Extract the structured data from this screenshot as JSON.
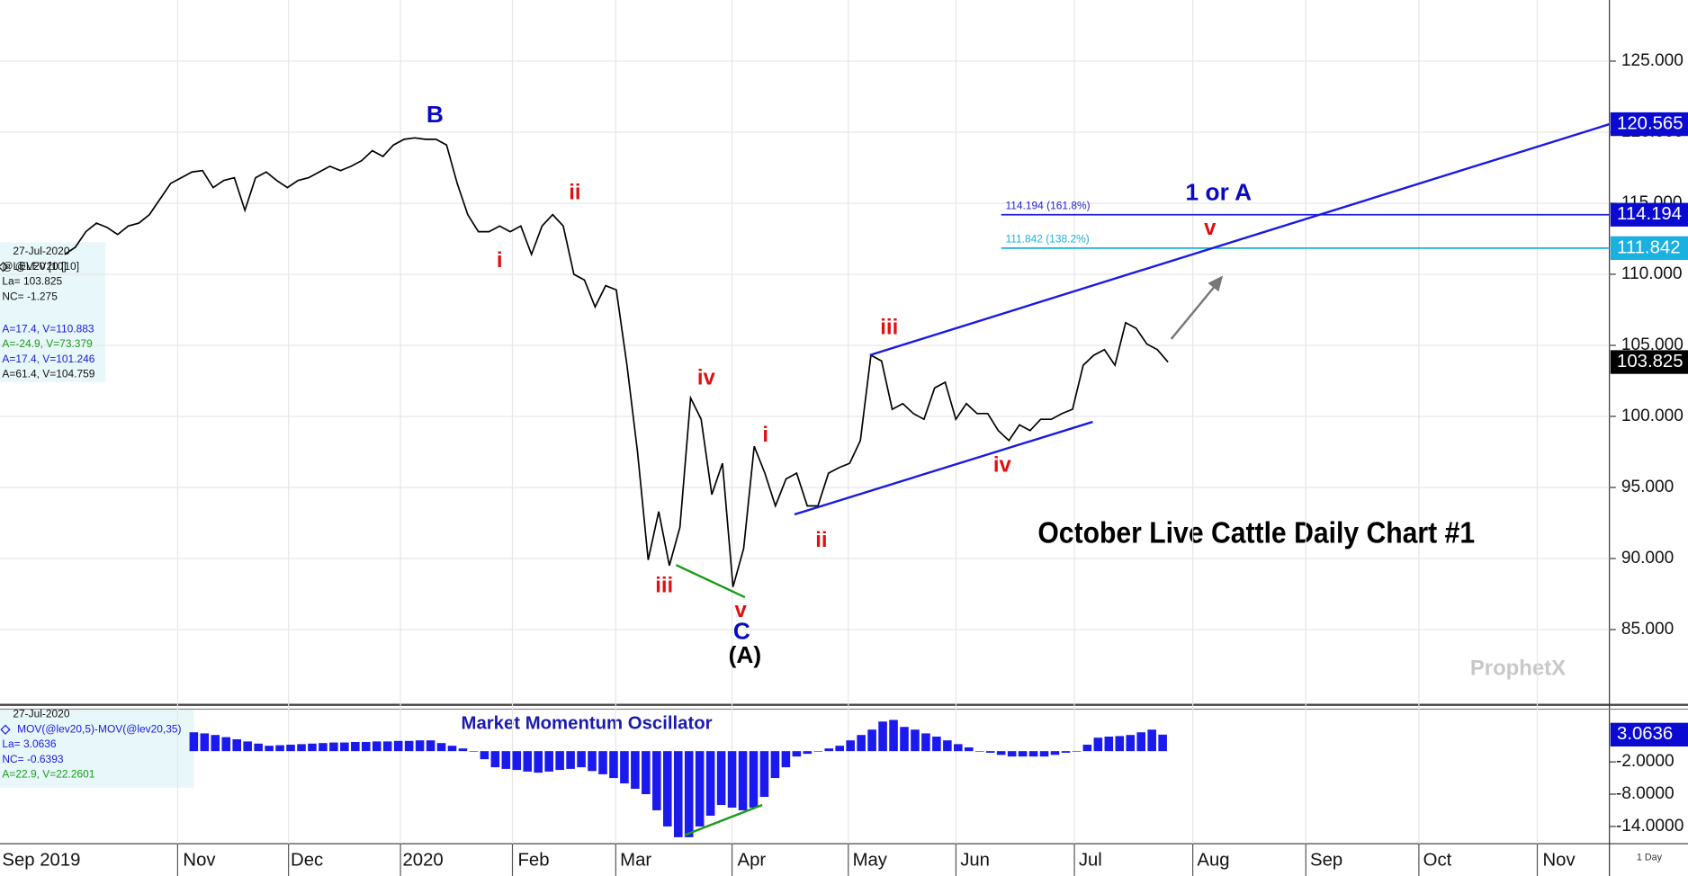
{
  "chart_data": [
    {
      "type": "line",
      "title": "October Live Cattle Daily Chart #1",
      "series": [
        {
          "name": "@LEV20",
          "color": "#000000",
          "values": [
            111.4,
            111.9,
            113.0,
            113.6,
            113.3,
            112.8,
            113.4,
            113.6,
            114.2,
            115.3,
            116.4,
            116.8,
            117.2,
            117.3,
            116.1,
            116.6,
            116.8,
            114.5,
            116.8,
            117.2,
            116.6,
            116.1,
            116.6,
            116.8,
            117.2,
            117.6,
            117.3,
            117.6,
            118.0,
            118.7,
            118.3,
            119.1,
            119.5,
            119.6,
            119.5,
            119.5,
            119.1,
            116.4,
            114.2,
            113.0,
            113.0,
            113.4,
            113.0,
            113.4,
            111.4,
            113.4,
            114.2,
            113.4,
            110.0,
            109.6,
            107.7,
            109.2,
            108.9,
            103.6,
            97.5,
            89.9,
            93.3,
            89.5,
            92.2,
            101.3,
            99.8,
            94.5,
            96.7,
            88.0,
            90.7,
            97.9,
            96.0,
            93.7,
            95.6,
            96.0,
            93.7,
            93.7,
            96.0,
            96.4,
            96.7,
            98.3,
            104.3,
            103.9,
            100.5,
            100.9,
            100.2,
            99.8,
            102.0,
            102.4,
            99.8,
            100.9,
            100.2,
            100.2,
            99.0,
            98.3,
            99.4,
            99.0,
            99.8,
            99.8,
            100.2,
            100.5,
            103.6,
            104.3,
            104.7,
            103.6,
            106.6,
            106.2,
            105.1,
            104.7,
            103.825
          ]
        }
      ],
      "ylim": [
        79.7,
        129.3
      ],
      "yticks": [
        {
          "value": 85,
          "label": "85.000"
        },
        {
          "value": 90,
          "label": "90.000"
        },
        {
          "value": 95,
          "label": "95.000"
        },
        {
          "value": 100,
          "label": "100.000"
        },
        {
          "value": 105,
          "label": "105.000"
        },
        {
          "value": 110,
          "label": "110.000"
        },
        {
          "value": 115,
          "label": "115.000"
        },
        {
          "value": 120,
          "label": "120.000"
        },
        {
          "value": 125,
          "label": "125.000"
        }
      ],
      "grid": true,
      "fib_levels": [
        {
          "value": 114.194,
          "label": "114.194 (161.8%)",
          "color": "#2323d8"
        },
        {
          "value": 111.842,
          "label": "111.842 (138.2%)",
          "color": "#1ab0e0"
        }
      ],
      "price_markers": [
        {
          "value": 120.565,
          "color": "#0a0ad0"
        },
        {
          "value": 114.194,
          "color": "#0a0ad0"
        },
        {
          "value": 111.842,
          "color": "#1ab0e0"
        },
        {
          "value": 103.825,
          "color": "#000000"
        }
      ],
      "annotations": [
        {
          "text": "B",
          "color": "#0a0ac0"
        },
        {
          "text": "i",
          "color": "#e01010"
        },
        {
          "text": "ii",
          "color": "#e01010"
        },
        {
          "text": "iii",
          "color": "#e01010"
        },
        {
          "text": "iv",
          "color": "#e01010"
        },
        {
          "text": "v",
          "color": "#e01010"
        },
        {
          "text": "C",
          "color": "#0a0ac0"
        },
        {
          "text": "(A)",
          "color": "#000000"
        },
        {
          "text": "i",
          "color": "#e01010"
        },
        {
          "text": "ii",
          "color": "#e01010"
        },
        {
          "text": "iii",
          "color": "#e01010"
        },
        {
          "text": "iv",
          "color": "#e01010"
        },
        {
          "text": "v",
          "color": "#e01010"
        },
        {
          "text": "1 or A",
          "color": "#0a0ac0"
        }
      ],
      "info": [
        "27-Jul-2020",
        "@LEV20 [10]",
        "La= 103.825",
        "NC= -1.275",
        "A=17.4, V=110.883",
        "A=-24.9, V=73.379",
        "A=17.4, V=101.246",
        "A=61.4, V=104.759"
      ],
      "watermark": "ProphetX"
    },
    {
      "type": "bar",
      "title": "Market Momentum Oscillator",
      "series": [
        {
          "name": "MOV(@lev20,5)-MOV(@lev20,35)",
          "color": "#1a1aee",
          "values": [
            3.5,
            3.3,
            3.0,
            2.6,
            2.2,
            1.8,
            1.4,
            1.0,
            1.1,
            1.2,
            1.3,
            1.4,
            1.5,
            1.6,
            1.6,
            1.7,
            1.7,
            1.8,
            1.8,
            1.9,
            1.9,
            2.0,
            2.0,
            1.5,
            1.0,
            0.5,
            0,
            -1.5,
            -3,
            -3.3,
            -3.5,
            -3.8,
            -4,
            -3.8,
            -3.5,
            -3.3,
            -3,
            -3.7,
            -4.3,
            -5,
            -6,
            -7,
            -8,
            -11,
            -14,
            -16,
            -16,
            -14,
            -12,
            -10,
            -10.5,
            -11,
            -10.5,
            -8.5,
            -5,
            -3,
            -1,
            -0.5,
            0,
            0.5,
            1,
            2,
            3,
            4,
            5.5,
            5.8,
            4.5,
            4,
            3.3,
            2.7,
            2,
            1.3,
            0.7,
            0,
            -0.3,
            -0.7,
            -1,
            -1,
            -1,
            -1,
            -0.7,
            -0.3,
            0,
            1.2,
            2.5,
            2.7,
            2.8,
            3,
            3.5,
            4,
            3.0636
          ]
        }
      ],
      "ylim": [
        -16.4,
        7.6
      ],
      "yticks": [
        {
          "value": -2,
          "label": "-2.0000"
        },
        {
          "value": -8,
          "label": "-8.0000"
        },
        {
          "value": -14,
          "label": "-14.0000"
        }
      ],
      "price_markers": [
        {
          "value": 3.0636,
          "color": "#0a0ad0"
        }
      ],
      "info": [
        "27-Jul-2020",
        "La= 3.0636",
        "NC= -0.6393",
        "A=22.9, V=22.2601"
      ],
      "x_labels": [
        "Sep 2019",
        "Nov",
        "Dec",
        "2020",
        "Feb",
        "Mar",
        "Apr",
        "May",
        "Jun",
        "Jul",
        "Aug",
        "Sep",
        "Oct",
        "Nov"
      ],
      "interval": "1 Day"
    }
  ]
}
